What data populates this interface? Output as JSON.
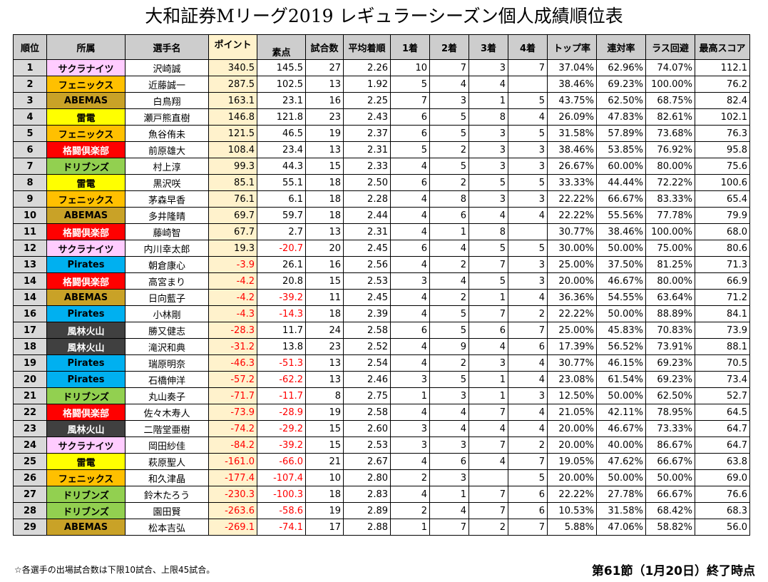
{
  "title": "大和証券Mリーグ2019 レギュラーシーズン個人成績順位表",
  "headers": [
    "順位",
    "所属",
    "選手名",
    "ポイント",
    "素点",
    "試合数",
    "平均着順",
    "1着",
    "2着",
    "3着",
    "4着",
    "トップ率",
    "連対率",
    "ラス回避",
    "最高スコア"
  ],
  "team_colors": {
    "サクラナイツ": {
      "bg": "#ffccff",
      "fg": "#000000"
    },
    "フェニックス": {
      "bg": "#ffc000",
      "fg": "#000000"
    },
    "ABEMAS": {
      "bg": "#c9a227",
      "fg": "#000000"
    },
    "雷電": {
      "bg": "#ffff00",
      "fg": "#000000"
    },
    "格闘倶楽部": {
      "bg": "#ff0000",
      "fg": "#ffffff"
    },
    "ドリブンズ": {
      "bg": "#92d050",
      "fg": "#000000"
    },
    "Pirates": {
      "bg": "#00b0f0",
      "fg": "#000000"
    },
    "風林火山": {
      "bg": "#404040",
      "fg": "#ffffff"
    }
  },
  "rows": [
    [
      "1",
      "サクラナイツ",
      "沢崎誠",
      "340.5",
      "145.5",
      "27",
      "2.26",
      "10",
      "7",
      "3",
      "7",
      "37.04%",
      "62.96%",
      "74.07%",
      "112.1"
    ],
    [
      "2",
      "フェニックス",
      "近藤誠一",
      "287.5",
      "102.5",
      "13",
      "1.92",
      "5",
      "4",
      "4",
      "",
      "38.46%",
      "69.23%",
      "100.00%",
      "76.2"
    ],
    [
      "3",
      "ABEMAS",
      "白鳥翔",
      "163.1",
      "23.1",
      "16",
      "2.25",
      "7",
      "3",
      "1",
      "5",
      "43.75%",
      "62.50%",
      "68.75%",
      "82.4"
    ],
    [
      "4",
      "雷電",
      "瀬戸熊直樹",
      "146.8",
      "121.8",
      "23",
      "2.43",
      "6",
      "5",
      "8",
      "4",
      "26.09%",
      "47.83%",
      "82.61%",
      "102.1"
    ],
    [
      "5",
      "フェニックス",
      "魚谷侑未",
      "121.5",
      "46.5",
      "19",
      "2.37",
      "6",
      "5",
      "3",
      "5",
      "31.58%",
      "57.89%",
      "73.68%",
      "76.3"
    ],
    [
      "6",
      "格闘倶楽部",
      "前原雄大",
      "108.4",
      "23.4",
      "13",
      "2.31",
      "5",
      "2",
      "3",
      "3",
      "38.46%",
      "53.85%",
      "76.92%",
      "95.8"
    ],
    [
      "7",
      "ドリブンズ",
      "村上淳",
      "99.3",
      "44.3",
      "15",
      "2.33",
      "4",
      "5",
      "3",
      "3",
      "26.67%",
      "60.00%",
      "80.00%",
      "75.6"
    ],
    [
      "8",
      "雷電",
      "黒沢咲",
      "85.1",
      "55.1",
      "18",
      "2.50",
      "6",
      "2",
      "5",
      "5",
      "33.33%",
      "44.44%",
      "72.22%",
      "100.6"
    ],
    [
      "9",
      "フェニックス",
      "茅森早香",
      "76.1",
      "6.1",
      "18",
      "2.28",
      "4",
      "8",
      "3",
      "3",
      "22.22%",
      "66.67%",
      "83.33%",
      "65.4"
    ],
    [
      "10",
      "ABEMAS",
      "多井隆晴",
      "69.7",
      "59.7",
      "18",
      "2.44",
      "4",
      "6",
      "4",
      "4",
      "22.22%",
      "55.56%",
      "77.78%",
      "79.9"
    ],
    [
      "11",
      "格闘倶楽部",
      "藤崎智",
      "67.7",
      "2.7",
      "13",
      "2.31",
      "4",
      "1",
      "8",
      "",
      "30.77%",
      "38.46%",
      "100.00%",
      "68.0"
    ],
    [
      "12",
      "サクラナイツ",
      "内川幸太郎",
      "19.3",
      "-20.7",
      "20",
      "2.45",
      "6",
      "4",
      "5",
      "5",
      "30.00%",
      "50.00%",
      "75.00%",
      "80.6"
    ],
    [
      "13",
      "Pirates",
      "朝倉康心",
      "-3.9",
      "26.1",
      "16",
      "2.56",
      "4",
      "2",
      "7",
      "3",
      "25.00%",
      "37.50%",
      "81.25%",
      "71.3"
    ],
    [
      "14",
      "格闘倶楽部",
      "高宮まり",
      "-4.2",
      "20.8",
      "15",
      "2.53",
      "3",
      "4",
      "5",
      "3",
      "20.00%",
      "46.67%",
      "80.00%",
      "66.9"
    ],
    [
      "14",
      "ABEMAS",
      "日向藍子",
      "-4.2",
      "-39.2",
      "11",
      "2.45",
      "4",
      "2",
      "1",
      "4",
      "36.36%",
      "54.55%",
      "63.64%",
      "71.2"
    ],
    [
      "16",
      "Pirates",
      "小林剛",
      "-4.3",
      "-14.3",
      "18",
      "2.39",
      "4",
      "5",
      "7",
      "2",
      "22.22%",
      "50.00%",
      "88.89%",
      "84.1"
    ],
    [
      "17",
      "風林火山",
      "勝又健志",
      "-28.3",
      "11.7",
      "24",
      "2.58",
      "6",
      "5",
      "6",
      "7",
      "25.00%",
      "45.83%",
      "70.83%",
      "73.9"
    ],
    [
      "18",
      "風林火山",
      "滝沢和典",
      "-31.2",
      "13.8",
      "23",
      "2.52",
      "4",
      "9",
      "4",
      "6",
      "17.39%",
      "56.52%",
      "73.91%",
      "88.1"
    ],
    [
      "19",
      "Pirates",
      "瑞原明奈",
      "-46.3",
      "-51.3",
      "13",
      "2.54",
      "4",
      "2",
      "3",
      "4",
      "30.77%",
      "46.15%",
      "69.23%",
      "70.5"
    ],
    [
      "20",
      "Pirates",
      "石橋伸洋",
      "-57.2",
      "-62.2",
      "13",
      "2.46",
      "3",
      "5",
      "1",
      "4",
      "23.08%",
      "61.54%",
      "69.23%",
      "73.4"
    ],
    [
      "21",
      "ドリブンズ",
      "丸山奏子",
      "-71.7",
      "-11.7",
      "8",
      "2.75",
      "1",
      "3",
      "1",
      "3",
      "12.50%",
      "50.00%",
      "62.50%",
      "52.7"
    ],
    [
      "22",
      "格闘倶楽部",
      "佐々木寿人",
      "-73.9",
      "-28.9",
      "19",
      "2.58",
      "4",
      "4",
      "7",
      "4",
      "21.05%",
      "42.11%",
      "78.95%",
      "64.5"
    ],
    [
      "23",
      "風林火山",
      "二階堂亜樹",
      "-74.2",
      "-29.2",
      "15",
      "2.60",
      "3",
      "4",
      "4",
      "4",
      "20.00%",
      "46.67%",
      "73.33%",
      "64.7"
    ],
    [
      "24",
      "サクラナイツ",
      "岡田紗佳",
      "-84.2",
      "-39.2",
      "15",
      "2.53",
      "3",
      "3",
      "7",
      "2",
      "20.00%",
      "40.00%",
      "86.67%",
      "64.7"
    ],
    [
      "25",
      "雷電",
      "萩原聖人",
      "-161.0",
      "-66.0",
      "21",
      "2.67",
      "4",
      "6",
      "4",
      "7",
      "19.05%",
      "47.62%",
      "66.67%",
      "63.8"
    ],
    [
      "26",
      "フェニックス",
      "和久津晶",
      "-177.4",
      "-107.4",
      "10",
      "2.80",
      "2",
      "3",
      "",
      "5",
      "20.00%",
      "50.00%",
      "50.00%",
      "69.0"
    ],
    [
      "27",
      "ドリブンズ",
      "鈴木たろう",
      "-230.3",
      "-100.3",
      "18",
      "2.83",
      "4",
      "1",
      "7",
      "6",
      "22.22%",
      "27.78%",
      "66.67%",
      "76.6"
    ],
    [
      "28",
      "ドリブンズ",
      "園田賢",
      "-263.6",
      "-58.6",
      "19",
      "2.89",
      "2",
      "4",
      "7",
      "6",
      "10.53%",
      "31.58%",
      "68.42%",
      "68.3"
    ],
    [
      "29",
      "ABEMAS",
      "松本吉弘",
      "-269.1",
      "-74.1",
      "17",
      "2.88",
      "1",
      "7",
      "2",
      "7",
      "5.88%",
      "47.06%",
      "58.82%",
      "56.0"
    ]
  ],
  "footnote": "☆各選手の出場試合数は下限10試合、上限45試合。",
  "as_of": "第61節（1月20日）終了時点"
}
